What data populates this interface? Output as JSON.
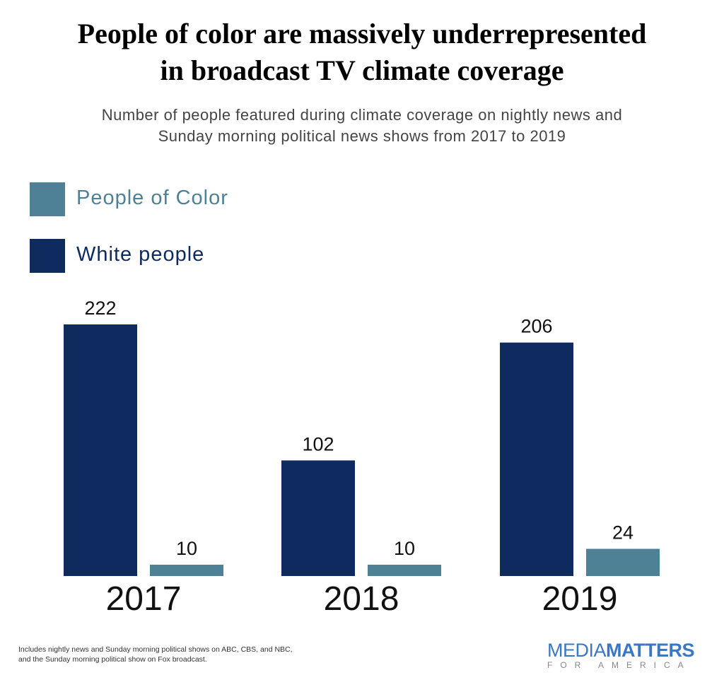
{
  "title_line1": "People of color are massively underrepresented",
  "title_line2": "in broadcast TV climate coverage",
  "subtitle_line1": "Number of people featured during climate coverage on nightly news and",
  "subtitle_line2": "Sunday morning political news shows from 2017 to 2019",
  "footnote_line1": "Includes nightly news and Sunday morning political shows on ABC, CBS, and NBC,",
  "footnote_line2": "and the Sunday morning political show on Fox broadcast.",
  "logo": {
    "part1": "MEDIA",
    "part2": "MATTERS",
    "part3": "FOR AMERICA"
  },
  "colors": {
    "white_people": "#0f2a5e",
    "people_of_color": "#4e8096"
  },
  "chart_data": {
    "type": "bar",
    "title": "People of color are massively underrepresented in broadcast TV climate coverage",
    "categories": [
      "2017",
      "2018",
      "2019"
    ],
    "series": [
      {
        "name": "White people",
        "values": [
          222,
          102,
          206
        ],
        "color": "#0f2a5e"
      },
      {
        "name": "People of Color",
        "values": [
          10,
          10,
          24
        ],
        "color": "#4e8096"
      }
    ],
    "legend_order": [
      "People of Color",
      "White people"
    ],
    "legend_placement": "top-left",
    "ylim": [
      0,
      222
    ],
    "grid": false,
    "data_labels": true
  }
}
